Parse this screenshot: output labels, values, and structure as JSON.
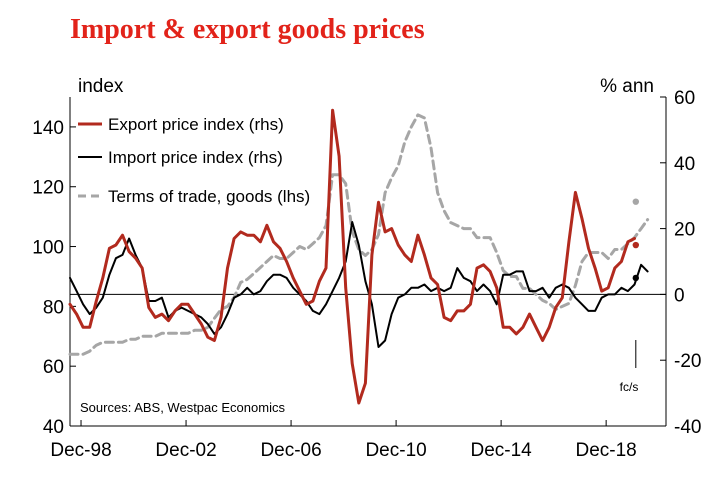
{
  "chart_data": {
    "type": "line",
    "title": "Import & export goods prices",
    "ylabel_left": "index",
    "ylabel_right": "% ann",
    "ylim_left": [
      40,
      150
    ],
    "ylim_right": [
      -40,
      60
    ],
    "yticks_left": [
      40,
      60,
      80,
      100,
      120,
      140
    ],
    "yticks_right": [
      -40,
      -20,
      0,
      20,
      40,
      60
    ],
    "xlim": [
      1998.5,
      2021.2
    ],
    "x_tick_labels": [
      "Dec-98",
      "Dec-02",
      "Dec-06",
      "Dec-10",
      "Dec-14",
      "Dec-18"
    ],
    "x_tick_positions": [
      1998.92,
      2002.92,
      2006.92,
      2010.92,
      2014.92,
      2018.92
    ],
    "zero_line_rhs": 0,
    "source": "Sources: ABS, Westpac Economics",
    "forecast_label": "fc/s",
    "forecast_marker_x": 2020.05,
    "series": [
      {
        "name": "Export price index (rhs)",
        "axis": "right",
        "color": "#b22a1e",
        "style": "solid",
        "x_start": 1998.5,
        "x_step": 0.25,
        "values": [
          -3,
          -6,
          -10,
          -10,
          -2,
          5,
          14,
          15,
          18,
          13,
          11,
          8,
          -4,
          -7,
          -6,
          -8,
          -5,
          -3,
          -3,
          -6,
          -9,
          -13,
          -14,
          -7,
          8,
          17,
          19,
          18,
          18,
          16,
          21,
          16,
          14,
          10,
          5,
          1,
          -3,
          -2,
          4,
          8,
          56,
          42,
          2,
          -21,
          -33,
          -27,
          12,
          28,
          19,
          20,
          15,
          12,
          10,
          18,
          12,
          5,
          3,
          -7,
          -8,
          -5,
          -5,
          -3,
          8,
          9,
          7,
          2,
          -10,
          -10,
          -12,
          -10,
          -6,
          -10,
          -14,
          -10,
          -4,
          -1,
          16,
          31,
          23,
          14,
          8,
          1,
          2,
          8,
          10,
          16,
          17
        ],
        "forecast": 15
      },
      {
        "name": "Import price index (rhs)",
        "axis": "right",
        "color": "#000000",
        "style": "solid",
        "x_start": 1998.5,
        "x_step": 0.25,
        "values": [
          5,
          1,
          -3,
          -6,
          -4,
          -1,
          6,
          11,
          12,
          17,
          12,
          8,
          -2,
          -2,
          -1,
          -7,
          -5,
          -4,
          -5,
          -6,
          -7,
          -9,
          -12,
          -10,
          -6,
          -1,
          0,
          2,
          0,
          1,
          4,
          6,
          6,
          5,
          2,
          0,
          -2,
          -5,
          -6,
          -3,
          1,
          5,
          10,
          22,
          15,
          4,
          -3,
          -16,
          -14,
          -6,
          -1,
          0,
          2,
          2,
          3,
          1,
          2,
          1,
          2,
          8,
          5,
          4,
          1,
          3,
          1,
          -3,
          6,
          6,
          7,
          7,
          1,
          1,
          2,
          -1,
          2,
          3,
          2,
          -1,
          -3,
          -5,
          -5,
          -1,
          0,
          0,
          2,
          1,
          3,
          9,
          7
        ],
        "forecast": 5
      },
      {
        "name": "Terms of trade, goods (lhs)",
        "axis": "left",
        "color": "#a6a6a6",
        "style": "dashed",
        "x_start": 1998.5,
        "x_step": 0.25,
        "values": [
          64,
          64,
          64,
          65,
          67,
          68,
          68,
          68,
          68,
          69,
          69,
          70,
          70,
          70,
          71,
          71,
          71,
          71,
          71,
          72,
          72,
          73,
          76,
          79,
          80,
          83,
          88,
          89,
          91,
          93,
          95,
          97,
          96,
          96,
          98,
          100,
          99,
          101,
          103,
          107,
          124,
          124,
          121,
          105,
          99,
          97,
          99,
          104,
          118,
          123,
          127,
          135,
          140,
          144,
          143,
          133,
          118,
          112,
          108,
          107,
          106,
          106,
          103,
          103,
          103,
          98,
          92,
          90,
          90,
          86,
          86,
          84,
          82,
          81,
          79,
          80,
          81,
          87,
          95,
          98,
          98,
          98,
          96,
          99,
          99,
          101,
          103,
          106,
          109
        ],
        "forecast": 115
      }
    ]
  }
}
